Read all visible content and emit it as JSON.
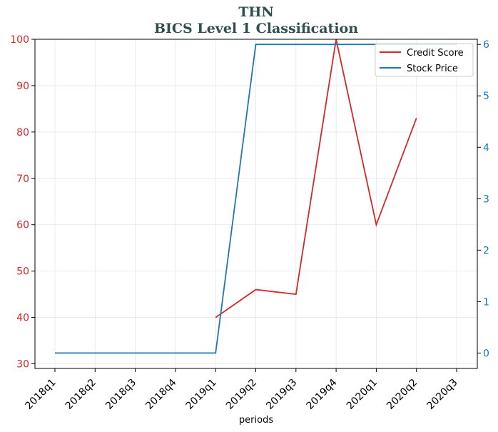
{
  "chart_data": {
    "type": "line",
    "title": "THN",
    "subtitle": "BICS Level 1 Classification",
    "xlabel": "periods",
    "ylabel_left": "",
    "ylabel_right": "",
    "categories": [
      "2018q1",
      "2018q2",
      "2018q3",
      "2018q4",
      "2019q1",
      "2019q2",
      "2019q3",
      "2019q4",
      "2020q1",
      "2020q2",
      "2020q3"
    ],
    "series": [
      {
        "name": "Credit Score",
        "axis": "left",
        "color": "#d62728",
        "values": [
          null,
          null,
          null,
          null,
          40,
          46,
          45,
          100,
          60,
          83,
          null
        ]
      },
      {
        "name": "Stock Price",
        "axis": "right",
        "color": "#1f77b4",
        "values": [
          0,
          0,
          0,
          0,
          0,
          6,
          6,
          6,
          6,
          6,
          6
        ]
      }
    ],
    "ylim_left": [
      29,
      100
    ],
    "ylim_right": [
      -0.3,
      6.1
    ],
    "yticks_left": [
      "30",
      "40",
      "50",
      "60",
      "70",
      "80",
      "90",
      "100"
    ],
    "yticks_right": [
      "0",
      "1",
      "2",
      "3",
      "4",
      "5",
      "6"
    ],
    "left_tick_color": "#d62728",
    "right_tick_color": "#1f77b4",
    "grid": true,
    "legend_position": "top-right"
  }
}
